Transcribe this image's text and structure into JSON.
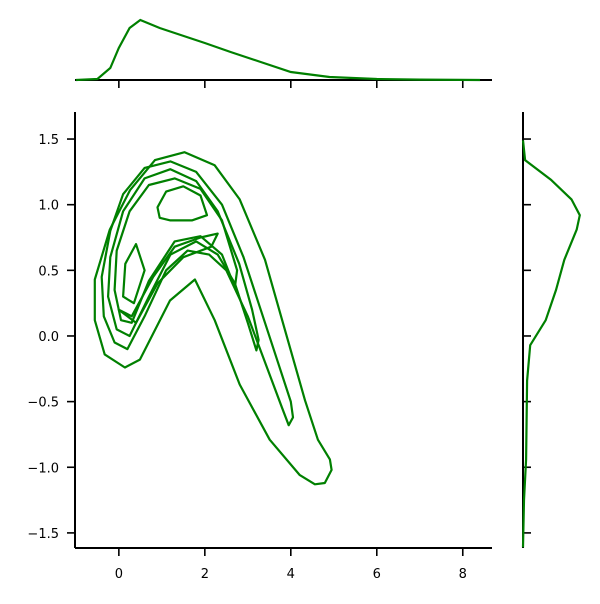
{
  "chart_data": [
    {
      "type": "contour",
      "color": "green",
      "xlim": [
        -1.02,
        8.68
      ],
      "ylim": [
        -1.615,
        1.706
      ],
      "xticks": [
        0,
        2,
        4,
        6,
        8
      ],
      "yticks": [
        {
          "value": -1.5,
          "label": "−1.5"
        },
        {
          "value": -1,
          "label": "−1.0"
        },
        {
          "value": -0.5,
          "label": "−0.5"
        },
        {
          "value": 0,
          "label": "0.0"
        },
        {
          "value": 0.5,
          "label": "0.5"
        },
        {
          "value": 1,
          "label": "1.0"
        },
        {
          "value": 1.5,
          "label": "1.5"
        }
      ],
      "contours": [
        {
          "x": [
            4.91,
            4.95,
            4.79,
            4.56,
            4.21,
            3.51,
            2.81,
            2.23,
            1.77,
            1.19,
            0.49,
            0.14,
            -0.33,
            -0.56,
            -0.56,
            -0.21,
            0.26,
            0.84,
            1.53,
            2.23,
            2.81,
            3.4,
            3.86,
            4.33,
            4.63
          ],
          "y": [
            -0.94,
            -1.02,
            -1.12,
            -1.13,
            -1.06,
            -0.79,
            -0.37,
            0.12,
            0.43,
            0.27,
            -0.18,
            -0.24,
            -0.14,
            0.12,
            0.43,
            0.81,
            1.11,
            1.34,
            1.4,
            1.3,
            1.04,
            0.58,
            0.05,
            -0.49,
            -0.79
          ]
        },
        {
          "x": [
            3.95,
            3.8,
            3.4,
            3.0,
            2.5,
            2.1,
            1.6,
            1.1,
            0.6,
            0.2,
            -0.1,
            -0.35,
            -0.4,
            -0.2,
            0.1,
            0.6,
            1.2,
            1.8,
            2.4,
            2.9,
            3.3,
            3.7,
            4.0,
            4.05
          ],
          "y": [
            -0.68,
            -0.55,
            -0.2,
            0.15,
            0.5,
            0.62,
            0.65,
            0.5,
            0.15,
            -0.1,
            -0.05,
            0.15,
            0.45,
            0.8,
            1.08,
            1.28,
            1.33,
            1.25,
            1.0,
            0.6,
            0.2,
            -0.2,
            -0.5,
            -0.62
          ]
        },
        {
          "x": [
            3.2,
            3.0,
            2.7,
            2.3,
            1.8,
            1.2,
            0.7,
            0.25,
            -0.05,
            -0.25,
            -0.2,
            0.1,
            0.6,
            1.2,
            1.8,
            2.3,
            2.8,
            3.1,
            3.25
          ],
          "y": [
            -0.11,
            0.1,
            0.4,
            0.62,
            0.72,
            0.62,
            0.3,
            0.0,
            0.05,
            0.3,
            0.6,
            0.95,
            1.2,
            1.27,
            1.18,
            0.95,
            0.55,
            0.2,
            -0.03
          ]
        },
        {
          "x": [
            2.7,
            2.4,
            1.9,
            1.3,
            0.7,
            0.3,
            0.05,
            -0.1,
            -0.05,
            0.25,
            0.7,
            1.3,
            1.9,
            2.4,
            2.75
          ],
          "y": [
            0.37,
            0.62,
            0.76,
            0.72,
            0.42,
            0.1,
            0.12,
            0.35,
            0.65,
            0.95,
            1.15,
            1.2,
            1.12,
            0.88,
            0.5
          ]
        },
        {
          "x": [
            0.9,
            1.1,
            1.5,
            1.9,
            2.05,
            1.7,
            1.2,
            0.95
          ],
          "y": [
            0.98,
            1.1,
            1.14,
            1.07,
            0.92,
            0.88,
            0.88,
            0.9
          ]
        },
        {
          "x": [
            0.0,
            0.3,
            0.8,
            1.3,
            1.9,
            2.3,
            2.15,
            1.5,
            0.9,
            0.4
          ],
          "y": [
            0.2,
            0.15,
            0.45,
            0.68,
            0.75,
            0.78,
            0.68,
            0.6,
            0.4,
            0.1
          ]
        },
        {
          "x": [
            0.1,
            0.35,
            0.6,
            0.4,
            0.15
          ],
          "y": [
            0.3,
            0.25,
            0.5,
            0.7,
            0.55
          ]
        }
      ]
    },
    {
      "type": "line",
      "color": "green",
      "orientation": "horizontal",
      "x": [
        -1,
        -0.5,
        -0.2,
        0,
        0.25,
        0.5,
        0.95,
        1.3,
        2,
        2.6,
        3.3,
        4,
        4.9,
        6,
        7,
        8.4
      ],
      "values": [
        0,
        0.005,
        0.06,
        0.16,
        0.26,
        0.3,
        0.26,
        0.235,
        0.185,
        0.14,
        0.09,
        0.04,
        0.015,
        0.005,
        0.002,
        0
      ],
      "ylim": [
        0,
        0.31
      ]
    },
    {
      "type": "line",
      "color": "green",
      "orientation": "vertical",
      "y": [
        1.49,
        1.34,
        1.19,
        1.04,
        0.92,
        0.81,
        0.58,
        0.35,
        0.12,
        -0.07,
        -0.34,
        -0.94,
        -1.25,
        -1.61
      ],
      "values": [
        0,
        0.01,
        0.135,
        0.235,
        0.275,
        0.26,
        0.2,
        0.16,
        0.11,
        0.035,
        0.02,
        0.015,
        0.005,
        0
      ],
      "xlim": [
        0,
        0.31
      ]
    }
  ]
}
